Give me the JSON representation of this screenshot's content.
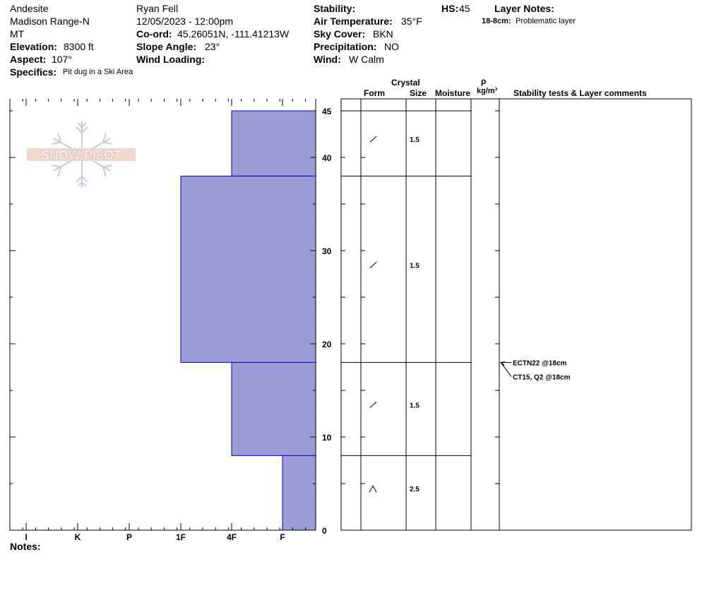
{
  "header": {
    "location": "Andesite",
    "range": "Madison Range-N",
    "state": "MT",
    "elevation_label": "Elevation:",
    "elevation_value": "8300 ft",
    "aspect_label": "Aspect:",
    "aspect_value": "107°",
    "specifics_label": "Specifics:",
    "specifics_value": "Pit dug in a Ski Area",
    "observer": "Ryan Fell",
    "datetime": "12/05/2023 - 12:00pm",
    "coord_label": "Co-ord:",
    "coord_value": "45.26051N, -111.41213W",
    "slope_label": "Slope Angle:",
    "slope_value": "23°",
    "wind_loading_label": "Wind Loading:",
    "stability_label": "Stability:",
    "air_temp_label": "Air Temperature:",
    "air_temp_value": "35°F",
    "sky_label": "Sky Cover:",
    "sky_value": "BKN",
    "precip_label": "Precipitation:",
    "precip_value": "NO",
    "wind_label": "Wind:",
    "wind_value": "W Calm",
    "hs_label": "HS:",
    "hs_value": "45",
    "layer_notes_label": "Layer Notes:",
    "layer_note_depth": "18-8cm:",
    "layer_note_text": "Problematic layer"
  },
  "logo": {
    "text": "SNOW PILOT"
  },
  "notes_label": "Notes:",
  "columns": {
    "crystal": "Crystal",
    "form": "Form",
    "size": "Size",
    "moisture": "Moisture",
    "rho": "ρ",
    "density_unit": "kg/m³",
    "comments": "Stability tests & Layer comments"
  },
  "chart_data": {
    "type": "bar",
    "subtype": "snow-profile-hardness",
    "x_categories": [
      "I",
      "K",
      "P",
      "1F",
      "4F",
      "F"
    ],
    "x_order_note": "hardness scale, softer to the right",
    "y_label": "",
    "ylim": [
      0,
      45
    ],
    "y_ticks": [
      0,
      10,
      20,
      30,
      40,
      45
    ],
    "layers": [
      {
        "bottom": 38,
        "top": 45,
        "hardness": "4F",
        "form": "/",
        "size": "1.5"
      },
      {
        "bottom": 18,
        "top": 38,
        "hardness": "1F",
        "form": "/",
        "size": "1.5"
      },
      {
        "bottom": 8,
        "top": 18,
        "hardness": "4F",
        "form": "/",
        "size": "1.5"
      },
      {
        "bottom": 0,
        "top": 8,
        "hardness": "F",
        "form": "^",
        "size": "2.5"
      }
    ],
    "stability_tests": [
      {
        "text": "ECTN22 @18cm",
        "depth": 18
      },
      {
        "text": "CT15, Q2 @18cm",
        "depth": 18
      }
    ],
    "colors": {
      "fill": "#9b9bd6",
      "stroke": "#0000cc",
      "grid": "#000000"
    }
  }
}
